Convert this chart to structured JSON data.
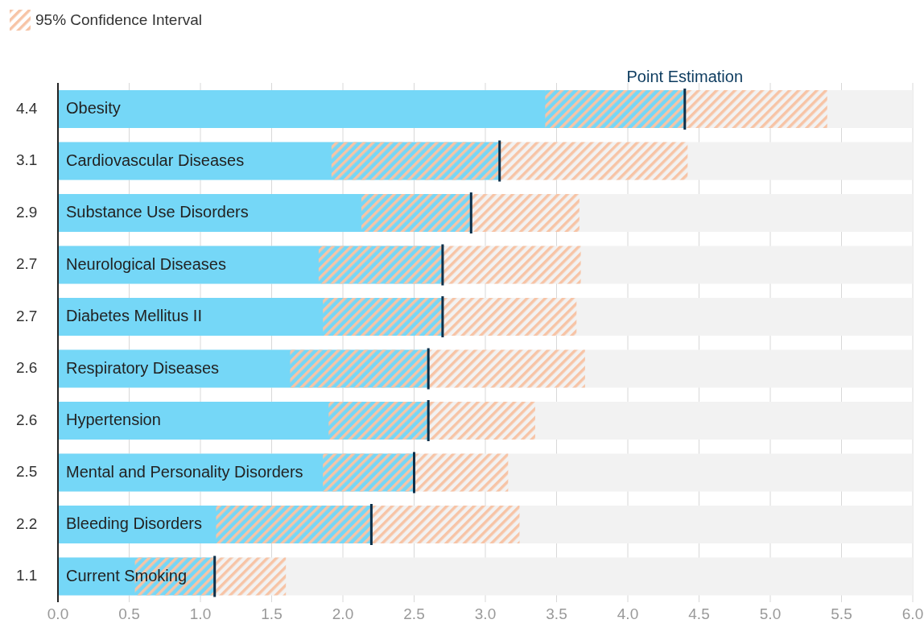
{
  "chart_data": {
    "type": "bar",
    "orientation": "horizontal",
    "categories": [
      "Obesity",
      "Cardiovascular Diseases",
      "Substance Use Disorders",
      "Neurological Diseases",
      "Diabetes Mellitus II",
      "Respiratory Diseases",
      "Hypertension",
      "Mental and Personality Disorders",
      "Bleeding Disorders",
      "Current Smoking"
    ],
    "values": [
      4.4,
      3.1,
      2.9,
      2.7,
      2.7,
      2.6,
      2.6,
      2.5,
      2.2,
      1.1
    ],
    "errors": [
      [
        3.42,
        5.4
      ],
      [
        1.92,
        4.42
      ],
      [
        2.13,
        3.66
      ],
      [
        1.83,
        3.67
      ],
      [
        1.86,
        3.64
      ],
      [
        1.63,
        3.7
      ],
      [
        1.9,
        3.35
      ],
      [
        1.86,
        3.16
      ],
      [
        1.11,
        3.24
      ],
      [
        0.54,
        1.6
      ]
    ],
    "color": "#75d7f7",
    "data_labels": true,
    "xlim": [
      0,
      6
    ],
    "xticks": [
      {
        "value": 0,
        "label": "0.0"
      },
      {
        "value": 0.5,
        "label": "0.5"
      },
      {
        "value": 1,
        "label": "1.0"
      },
      {
        "value": 1.5,
        "label": "1.5"
      },
      {
        "value": 2,
        "label": "2.0"
      },
      {
        "value": 2.5,
        "label": "2.5"
      },
      {
        "value": 3,
        "label": "3.0"
      },
      {
        "value": 3.5,
        "label": "3.5"
      },
      {
        "value": 4,
        "label": "4.0"
      },
      {
        "value": 4.5,
        "label": "4.5"
      },
      {
        "value": 5,
        "label": "5.0"
      },
      {
        "value": 5.5,
        "label": "5.5"
      },
      {
        "value": 6,
        "label": "6.0"
      }
    ],
    "grid": "x",
    "legend_title": "95% Confidence Interval",
    "annotations": [
      {
        "text": "Point Estimation",
        "x": 4.4,
        "y": "Obesity"
      }
    ]
  }
}
